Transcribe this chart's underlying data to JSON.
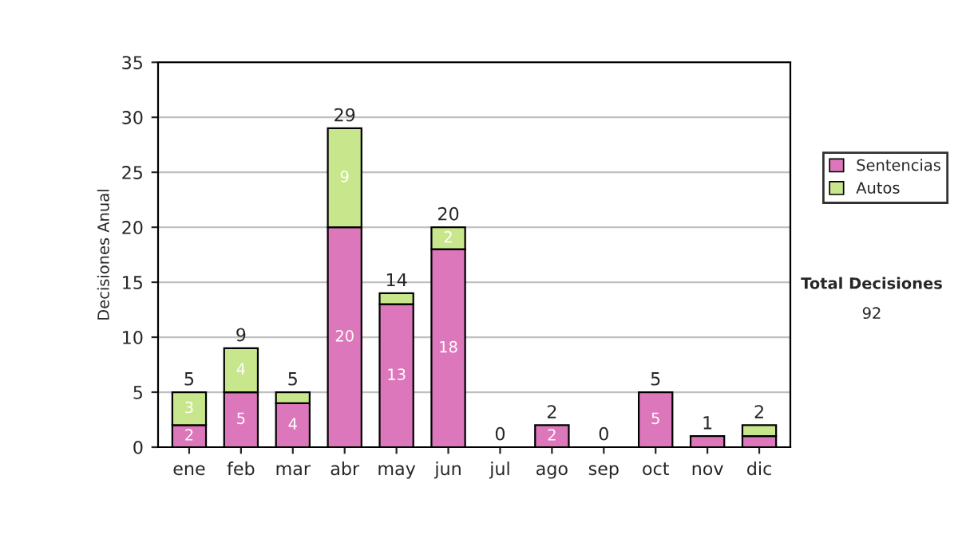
{
  "chart_data": {
    "type": "bar",
    "stacked": true,
    "ylabel": "Decisiones Anual",
    "categories": [
      "ene",
      "feb",
      "mar",
      "abr",
      "may",
      "jun",
      "jul",
      "ago",
      "sep",
      "oct",
      "nov",
      "dic"
    ],
    "series": [
      {
        "name": "Sentencias",
        "color": "#dd77bb",
        "values": [
          2,
          5,
          4,
          20,
          13,
          18,
          0,
          2,
          0,
          5,
          1,
          1
        ],
        "value_labels": [
          "2",
          "5",
          "4",
          "20",
          "13",
          "18",
          null,
          "2",
          null,
          "5",
          null,
          null
        ]
      },
      {
        "name": "Autos",
        "color": "#c8e68c",
        "values": [
          3,
          4,
          1,
          9,
          1,
          2,
          0,
          0,
          0,
          0,
          0,
          1
        ],
        "value_labels": [
          "3",
          "4",
          null,
          "9",
          null,
          "2",
          null,
          null,
          null,
          null,
          null,
          null
        ]
      }
    ],
    "totals": [
      "5",
      "9",
      "5",
      "29",
      "14",
      "20",
      "0",
      "2",
      "0",
      "5",
      "1",
      "2"
    ],
    "ylim": [
      0,
      35
    ],
    "yticks": [
      0,
      5,
      10,
      15,
      20,
      25,
      30,
      35
    ],
    "grid": "y",
    "legend": "right",
    "annotations": [
      "Total Decisiones",
      "92"
    ]
  }
}
